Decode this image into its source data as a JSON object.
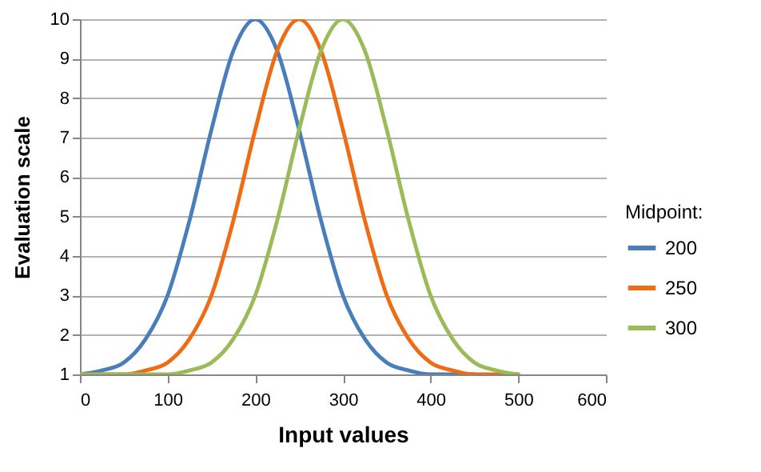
{
  "chart_data": {
    "type": "line",
    "xlabel": "Input values",
    "ylabel": "Evaluation scale",
    "legend_title": "Midpoint:",
    "x": [
      0,
      25,
      50,
      75,
      100,
      125,
      150,
      175,
      200,
      225,
      250,
      275,
      300,
      325,
      350,
      375,
      400,
      425,
      450,
      475,
      500
    ],
    "series": [
      {
        "name": "200",
        "color": "#4a7ebb",
        "values": [
          1.0,
          1.1,
          1.3,
          1.9,
          3.0,
          4.9,
          7.2,
          9.2,
          10,
          9.2,
          7.2,
          4.9,
          3.0,
          1.9,
          1.3,
          1.1,
          1.0,
          1.0,
          1.0,
          null,
          null
        ]
      },
      {
        "name": "250",
        "color": "#ef6c14",
        "values": [
          1.0,
          1.0,
          1.0,
          1.1,
          1.3,
          1.9,
          3.0,
          4.9,
          7.2,
          9.2,
          10,
          9.2,
          7.2,
          4.9,
          3.0,
          1.9,
          1.3,
          1.1,
          1.0,
          1.0,
          1.0
        ]
      },
      {
        "name": "300",
        "color": "#9bbb59",
        "values": [
          1.0,
          1.0,
          1.0,
          1.0,
          1.0,
          1.1,
          1.3,
          1.9,
          3.0,
          4.9,
          7.2,
          9.2,
          10,
          9.2,
          7.2,
          4.9,
          3.0,
          1.9,
          1.3,
          1.1,
          1.0
        ]
      }
    ],
    "xlim": [
      0,
      600
    ],
    "xticks": [
      0,
      100,
      200,
      300,
      400,
      500,
      600
    ],
    "ylim": [
      1,
      10
    ],
    "yticks": [
      1,
      2,
      3,
      4,
      5,
      6,
      7,
      8,
      9,
      10
    ],
    "grid": "y",
    "legend": "right",
    "marker": "none",
    "line_style": "solid"
  }
}
